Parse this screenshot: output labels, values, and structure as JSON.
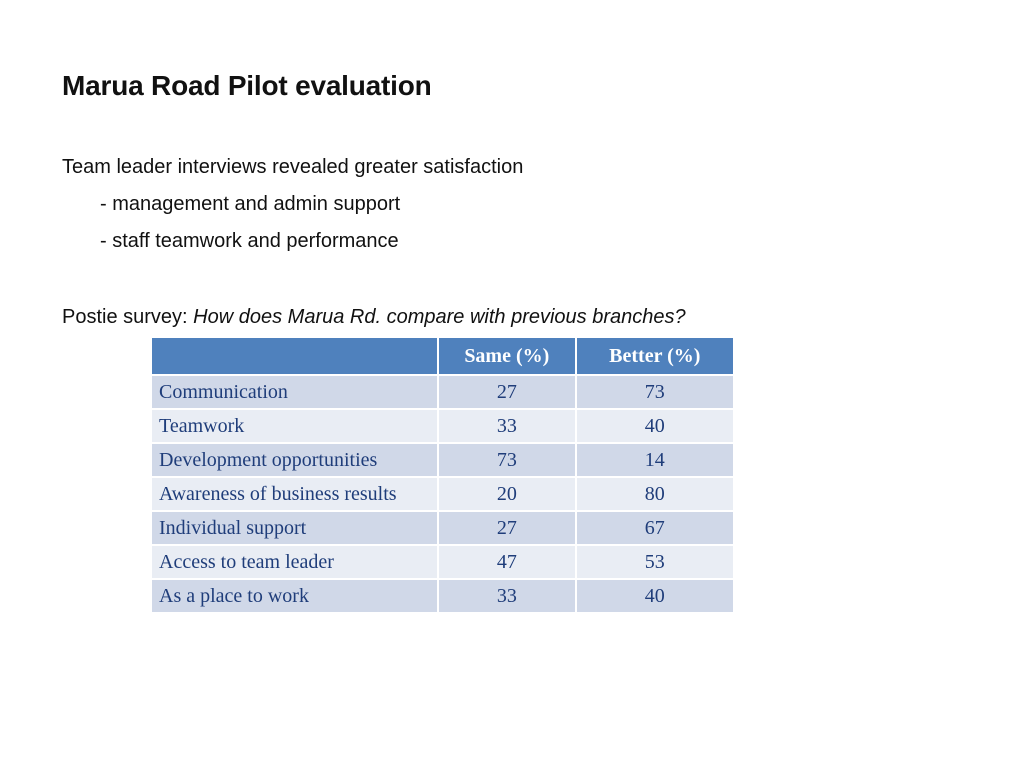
{
  "slide": {
    "title": "Marua Road Pilot evaluation",
    "intro": "Team leader interviews revealed greater satisfaction",
    "bullets": [
      "- management and admin support",
      "- staff teamwork  and performance"
    ],
    "survey_prefix": "Postie survey: ",
    "survey_question": "How does Marua Rd. compare with previous branches?"
  },
  "table": {
    "headers": [
      "",
      "Same (%)",
      "Better (%)"
    ],
    "rows": [
      {
        "label": "Communication",
        "same": "27",
        "better": "73"
      },
      {
        "label": "Teamwork",
        "same": "33",
        "better": "40"
      },
      {
        "label": "Development opportunities",
        "same": "73",
        "better": "14"
      },
      {
        "label": "Awareness of business results",
        "same": "20",
        "better": "80"
      },
      {
        "label": "Individual support",
        "same": "27",
        "better": "67"
      },
      {
        "label": "Access to team leader",
        "same": "47",
        "better": "53"
      },
      {
        "label": "As a place to work",
        "same": "33",
        "better": "40"
      }
    ]
  },
  "colors": {
    "header_bg": "#4f81bd",
    "row_odd_bg": "#d0d8e8",
    "row_even_bg": "#e9edf4",
    "cell_text": "#1f3d7a"
  }
}
